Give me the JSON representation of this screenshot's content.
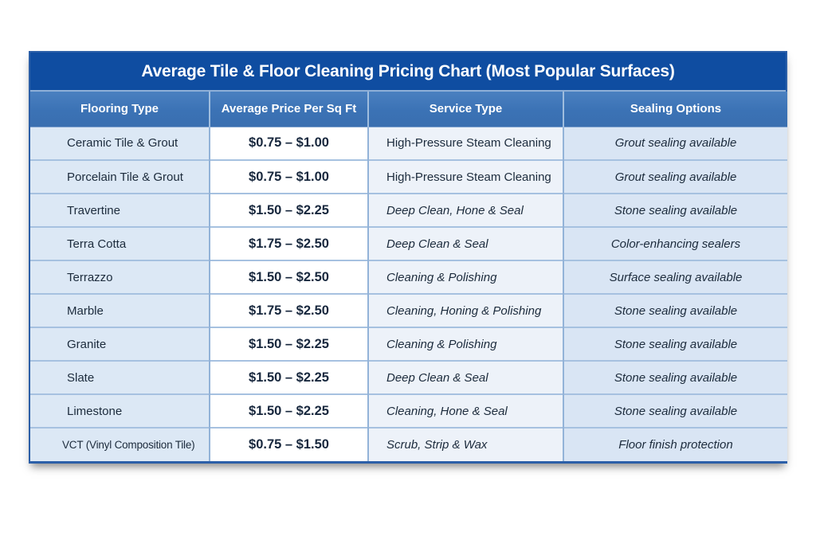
{
  "title": "Average Tile & Floor Cleaning Pricing Chart (Most Popular Surfaces)",
  "chart_data": {
    "type": "table",
    "title": "Average Tile & Floor Cleaning Pricing Chart (Most Popular Surfaces)",
    "columns": [
      "Flooring Type",
      "Average Price Per Sq Ft",
      "Service Type",
      "Sealing Options"
    ],
    "rows": [
      {
        "flooring": "Ceramic Tile & Grout",
        "price": "$0.75 – $1.00",
        "service": "High-Pressure Steam Cleaning",
        "sealing": "Grout sealing available"
      },
      {
        "flooring": "Porcelain Tile & Grout",
        "price": "$0.75 – $1.00",
        "service": "High-Pressure Steam Cleaning",
        "sealing": "Grout sealing available"
      },
      {
        "flooring": "Travertine",
        "price": "$1.50 – $2.25",
        "service": "Deep Clean, Hone & Seal",
        "sealing": "Stone sealing available"
      },
      {
        "flooring": "Terra Cotta",
        "price": "$1.75 – $2.50",
        "service": "Deep Clean & Seal",
        "sealing": "Color-enhancing sealers"
      },
      {
        "flooring": "Terrazzo",
        "price": "$1.50 – $2.50",
        "service": "Cleaning & Polishing",
        "sealing": "Surface sealing available"
      },
      {
        "flooring": "Marble",
        "price": "$1.75 – $2.50",
        "service": "Cleaning, Honing & Polishing",
        "sealing": "Stone sealing available"
      },
      {
        "flooring": "Granite",
        "price": "$1.50 – $2.25",
        "service": "Cleaning & Polishing",
        "sealing": "Stone sealing available"
      },
      {
        "flooring": "Slate",
        "price": "$1.50 – $2.25",
        "service": "Deep Clean & Seal",
        "sealing": "Stone sealing available"
      },
      {
        "flooring": "Limestone",
        "price": "$1.50 – $2.25",
        "service": "Cleaning, Hone & Seal",
        "sealing": "Stone sealing available"
      },
      {
        "flooring": "VCT (Vinyl Composition Tile)",
        "price": "$0.75 – $1.50",
        "service": "Scrub, Strip & Wax",
        "sealing": "Floor finish protection"
      }
    ]
  },
  "colors": {
    "title_bar_bg": "#0f4da1",
    "header_bg": "#3b72b5",
    "header_divider": "#9fbdde",
    "flooring_col_bg": "#dce8f5",
    "price_col_bg": "#ffffff",
    "service_col_bg": "#edf2f9",
    "sealing_col_bg": "#d9e5f4",
    "grid_line": "#a6c1e0",
    "outer_border": "#2b5fa8",
    "text": "#1c2b3c",
    "header_text": "#ffffff"
  }
}
